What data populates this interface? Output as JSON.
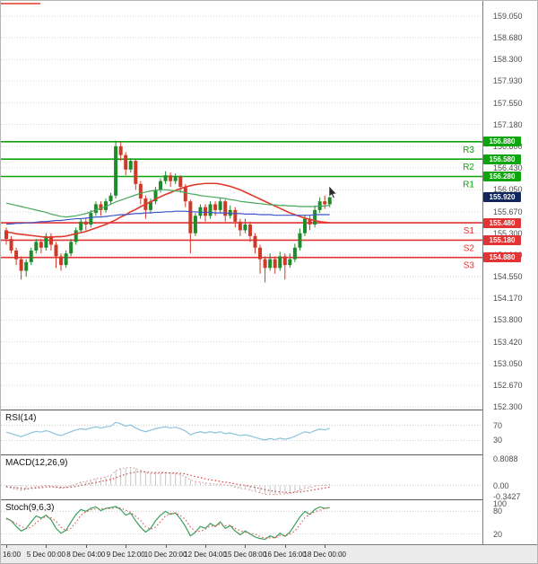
{
  "colors": {
    "background": "#ffffff",
    "grid": "#d6d6d6",
    "candle_up": "#1e8c28",
    "candle_down": "#cf3a28",
    "ma_red": "#e0392c",
    "ma_green": "#46a85c",
    "ma_blue": "#3c55c8",
    "resistance": "#0da50d",
    "support": "#e23434",
    "current_price_tag": "#10265c",
    "axis_text": "#444444",
    "timeline_bg": "#ececec"
  },
  "chart_data": {
    "type": "candlestick",
    "price_axis_ticks": [
      "159.050",
      "158.680",
      "158.300",
      "157.930",
      "157.550",
      "157.180",
      "156.800",
      "156.430",
      "156.050",
      "155.670",
      "155.300",
      "154.920",
      "154.550",
      "154.170",
      "153.800",
      "153.420",
      "153.050",
      "152.670",
      "152.300"
    ],
    "time_axis_ticks": [
      "16:00",
      "5 Dec 00:00",
      "8 Dec 04:00",
      "9 Dec 12:00",
      "10 Dec 20:00",
      "12 Dec 04:00",
      "15 Dec 08:00",
      "16 Dec 16:00",
      "18 Dec 00:00"
    ],
    "price_range": [
      152.253,
      159.314
    ],
    "levels": {
      "resistance": [
        {
          "label": "R3",
          "price": 156.88,
          "tag": "156.880"
        },
        {
          "label": "R2",
          "price": 156.58,
          "tag": "156.580"
        },
        {
          "label": "R1",
          "price": 156.28,
          "tag": "156.280"
        }
      ],
      "support": [
        {
          "label": "S1",
          "price": 155.48,
          "tag": "155.480"
        },
        {
          "label": "S2",
          "price": 155.18,
          "tag": "155.180"
        },
        {
          "label": "S3",
          "price": 154.88,
          "tag": "154.880"
        }
      ],
      "current": {
        "price": 155.92,
        "tag": "155.920"
      }
    },
    "candles": [
      [
        155.35,
        155.4,
        155.1,
        155.2
      ],
      [
        155.2,
        155.25,
        154.95,
        155.0
      ],
      [
        155.0,
        155.05,
        154.75,
        154.85
      ],
      [
        154.85,
        154.9,
        154.5,
        154.65
      ],
      [
        154.65,
        154.85,
        154.55,
        154.8
      ],
      [
        154.8,
        155.05,
        154.75,
        155.0
      ],
      [
        155.0,
        155.2,
        154.95,
        155.15
      ],
      [
        155.15,
        155.2,
        154.95,
        155.05
      ],
      [
        155.05,
        155.3,
        155.0,
        155.25
      ],
      [
        155.25,
        155.3,
        155.0,
        155.1
      ],
      [
        155.1,
        155.15,
        154.7,
        154.9
      ],
      [
        154.9,
        154.95,
        154.65,
        154.75
      ],
      [
        154.75,
        155.0,
        154.7,
        154.95
      ],
      [
        154.95,
        155.2,
        154.9,
        155.15
      ],
      [
        155.15,
        155.4,
        155.1,
        155.35
      ],
      [
        155.35,
        155.55,
        155.3,
        155.5
      ],
      [
        155.5,
        155.55,
        155.35,
        155.45
      ],
      [
        155.45,
        155.7,
        155.4,
        155.65
      ],
      [
        155.65,
        155.85,
        155.6,
        155.8
      ],
      [
        155.8,
        155.85,
        155.6,
        155.7
      ],
      [
        155.7,
        155.9,
        155.65,
        155.85
      ],
      [
        155.85,
        156.0,
        155.8,
        155.95
      ],
      [
        155.95,
        156.9,
        155.9,
        156.8
      ],
      [
        156.8,
        156.88,
        156.55,
        156.65
      ],
      [
        156.65,
        156.7,
        156.3,
        156.4
      ],
      [
        156.4,
        156.6,
        156.35,
        156.55
      ],
      [
        156.55,
        156.58,
        156.05,
        156.15
      ],
      [
        156.15,
        156.2,
        155.8,
        155.9
      ],
      [
        155.9,
        155.95,
        155.55,
        155.7
      ],
      [
        155.7,
        155.9,
        155.65,
        155.85
      ],
      [
        155.85,
        156.1,
        155.8,
        156.05
      ],
      [
        156.05,
        156.25,
        156.0,
        156.2
      ],
      [
        156.2,
        156.37,
        156.15,
        156.3
      ],
      [
        156.3,
        156.35,
        156.1,
        156.2
      ],
      [
        156.2,
        156.33,
        156.15,
        156.28
      ],
      [
        156.28,
        156.3,
        156.0,
        156.1
      ],
      [
        156.1,
        156.15,
        155.75,
        155.85
      ],
      [
        155.85,
        155.88,
        154.95,
        155.3
      ],
      [
        155.3,
        155.65,
        155.25,
        155.6
      ],
      [
        155.6,
        155.8,
        155.55,
        155.75
      ],
      [
        155.75,
        155.8,
        155.5,
        155.6
      ],
      [
        155.6,
        155.85,
        155.55,
        155.8
      ],
      [
        155.8,
        155.85,
        155.6,
        155.7
      ],
      [
        155.7,
        155.9,
        155.65,
        155.85
      ],
      [
        155.85,
        155.88,
        155.5,
        155.6
      ],
      [
        155.6,
        155.78,
        155.55,
        155.7
      ],
      [
        155.7,
        155.75,
        155.4,
        155.5
      ],
      [
        155.5,
        155.55,
        155.25,
        155.35
      ],
      [
        155.35,
        155.55,
        155.3,
        155.45
      ],
      [
        155.45,
        155.5,
        155.15,
        155.25
      ],
      [
        155.25,
        155.3,
        154.95,
        155.05
      ],
      [
        155.05,
        155.1,
        154.6,
        154.85
      ],
      [
        154.85,
        154.9,
        154.45,
        154.7
      ],
      [
        154.7,
        154.95,
        154.65,
        154.85
      ],
      [
        154.85,
        154.9,
        154.6,
        154.7
      ],
      [
        154.7,
        154.98,
        154.65,
        154.9
      ],
      [
        154.9,
        154.95,
        154.5,
        154.75
      ],
      [
        154.75,
        154.95,
        154.7,
        154.85
      ],
      [
        154.85,
        155.12,
        154.8,
        155.05
      ],
      [
        155.05,
        155.38,
        155.0,
        155.3
      ],
      [
        155.3,
        155.62,
        155.25,
        155.55
      ],
      [
        155.55,
        155.6,
        155.35,
        155.45
      ],
      [
        155.45,
        155.78,
        155.4,
        155.7
      ],
      [
        155.7,
        155.92,
        155.65,
        155.85
      ],
      [
        155.85,
        155.95,
        155.72,
        155.8
      ],
      [
        155.8,
        155.97,
        155.75,
        155.92
      ]
    ],
    "overlays": [
      {
        "name": "ma-red",
        "color": "#e0392c",
        "values": [
          155.32,
          155.31,
          155.29,
          155.28,
          155.27,
          155.26,
          155.25,
          155.24,
          155.23,
          155.23,
          155.24,
          155.24,
          155.25,
          155.27,
          155.29,
          155.31,
          155.33,
          155.36,
          155.39,
          155.42,
          155.45,
          155.49,
          155.53,
          155.58,
          155.62,
          155.67,
          155.71,
          155.76,
          155.8,
          155.84,
          155.89,
          155.93,
          155.97,
          156.0,
          156.04,
          156.07,
          156.1,
          156.12,
          156.14,
          156.15,
          156.16,
          156.16,
          156.16,
          156.15,
          156.13,
          156.11,
          156.08,
          156.05,
          156.01,
          155.97,
          155.93,
          155.89,
          155.85,
          155.81,
          155.77,
          155.73,
          155.69,
          155.65,
          155.62,
          155.59,
          155.56,
          155.54,
          155.52,
          155.5,
          155.49,
          155.48
        ]
      },
      {
        "name": "ma-green",
        "color": "#46a85c",
        "values": [
          155.82,
          155.8,
          155.78,
          155.76,
          155.74,
          155.72,
          155.7,
          155.68,
          155.66,
          155.63,
          155.61,
          155.59,
          155.58,
          155.59,
          155.6,
          155.62,
          155.64,
          155.67,
          155.7,
          155.73,
          155.76,
          155.8,
          155.84,
          155.87,
          155.9,
          155.93,
          155.96,
          155.99,
          156.01,
          156.03,
          156.04,
          156.05,
          156.05,
          156.04,
          156.03,
          156.02,
          156.0,
          155.98,
          155.97,
          155.95,
          155.94,
          155.93,
          155.92,
          155.91,
          155.9,
          155.88,
          155.87,
          155.85,
          155.84,
          155.83,
          155.82,
          155.81,
          155.8,
          155.79,
          155.79,
          155.78,
          155.78,
          155.77,
          155.77,
          155.76,
          155.76,
          155.76,
          155.76,
          155.77,
          155.77,
          155.78
        ]
      },
      {
        "name": "ma-blue",
        "color": "#3c55c8",
        "values": [
          155.46,
          155.46,
          155.47,
          155.47,
          155.48,
          155.48,
          155.49,
          155.5,
          155.5,
          155.51,
          155.52,
          155.52,
          155.53,
          155.54,
          155.55,
          155.55,
          155.56,
          155.57,
          155.58,
          155.58,
          155.59,
          155.6,
          155.61,
          155.62,
          155.62,
          155.63,
          155.64,
          155.64,
          155.65,
          155.65,
          155.66,
          155.66,
          155.67,
          155.67,
          155.68,
          155.68,
          155.68,
          155.67,
          155.67,
          155.66,
          155.66,
          155.66,
          155.65,
          155.65,
          155.65,
          155.64,
          155.64,
          155.64,
          155.63,
          155.63,
          155.63,
          155.62,
          155.62,
          155.62,
          155.61,
          155.61,
          155.61,
          155.61,
          155.61,
          155.61,
          155.61,
          155.61,
          155.62,
          155.62,
          155.62,
          155.62
        ]
      }
    ],
    "panes": {
      "rsi": {
        "label": "RSI(14)",
        "range": [
          0,
          100
        ],
        "ticks": [
          {
            "v": 70,
            "t": "70"
          },
          {
            "v": 30,
            "t": "30"
          }
        ],
        "series": [
          {
            "name": "rsi-line",
            "color": "#8cc3dc",
            "style": "solid",
            "values": [
              52,
              48,
              44,
              40,
              45,
              50,
              54,
              52,
              56,
              52,
              46,
              43,
              48,
              53,
              58,
              61,
              59,
              63,
              66,
              63,
              66,
              68,
              78,
              74,
              68,
              71,
              63,
              57,
              53,
              57,
              61,
              64,
              66,
              63,
              65,
              61,
              55,
              45,
              50,
              53,
              50,
              53,
              50,
              53,
              48,
              50,
              46,
              43,
              45,
              42,
              38,
              34,
              31,
              35,
              32,
              36,
              33,
              36,
              41,
              47,
              53,
              50,
              56,
              60,
              58,
              62
            ]
          }
        ]
      },
      "macd": {
        "label": "MACD(12,26,9)",
        "range": [
          -0.3427,
          0.8088
        ],
        "ticks": [
          {
            "v": 0.8088,
            "t": "0.8088"
          },
          {
            "v": 0,
            "t": "0.00"
          },
          {
            "v": -0.3427,
            "t": "-0.3427"
          }
        ],
        "zero_line": 0,
        "series": [
          {
            "name": "macd-line",
            "color": "#e39a9a",
            "style": "dashed",
            "values": [
              -0.05,
              -0.08,
              -0.12,
              -0.15,
              -0.12,
              -0.08,
              -0.04,
              -0.03,
              0.0,
              -0.02,
              -0.06,
              -0.09,
              -0.07,
              -0.02,
              0.04,
              0.1,
              0.12,
              0.16,
              0.21,
              0.22,
              0.26,
              0.3,
              0.45,
              0.52,
              0.53,
              0.55,
              0.52,
              0.46,
              0.39,
              0.36,
              0.36,
              0.37,
              0.38,
              0.37,
              0.36,
              0.33,
              0.27,
              0.17,
              0.12,
              0.1,
              0.07,
              0.06,
              0.04,
              0.04,
              0.01,
              -0.01,
              -0.05,
              -0.09,
              -0.11,
              -0.14,
              -0.18,
              -0.23,
              -0.27,
              -0.27,
              -0.28,
              -0.26,
              -0.26,
              -0.24,
              -0.2,
              -0.15,
              -0.09,
              -0.07,
              -0.03,
              0.0,
              0.01,
              0.03
            ]
          },
          {
            "name": "macd-signal",
            "color": "#d04545",
            "style": "dashed",
            "values": [
              -0.03,
              -0.05,
              -0.07,
              -0.09,
              -0.1,
              -0.09,
              -0.08,
              -0.07,
              -0.05,
              -0.04,
              -0.05,
              -0.06,
              -0.06,
              -0.05,
              -0.03,
              0.0,
              0.03,
              0.06,
              0.09,
              0.12,
              0.15,
              0.18,
              0.23,
              0.29,
              0.34,
              0.38,
              0.41,
              0.42,
              0.41,
              0.4,
              0.39,
              0.39,
              0.39,
              0.38,
              0.38,
              0.37,
              0.35,
              0.31,
              0.27,
              0.24,
              0.2,
              0.17,
              0.15,
              0.12,
              0.1,
              0.08,
              0.05,
              0.02,
              0.0,
              -0.03,
              -0.06,
              -0.09,
              -0.13,
              -0.16,
              -0.18,
              -0.2,
              -0.21,
              -0.22,
              -0.21,
              -0.2,
              -0.18,
              -0.16,
              -0.13,
              -0.1,
              -0.08,
              -0.05
            ]
          }
        ]
      },
      "stoch": {
        "label": "Stoch(9,6,3)",
        "range": [
          0,
          100
        ],
        "ticks": [
          {
            "v": 100,
            "t": "100"
          },
          {
            "v": 80,
            "t": "80"
          },
          {
            "v": 20,
            "t": "20"
          }
        ],
        "series": [
          {
            "name": "stoch-k",
            "color": "#3aa05a",
            "style": "solid",
            "values": [
              62,
              55,
              40,
              28,
              35,
              52,
              68,
              62,
              70,
              58,
              35,
              22,
              30,
              52,
              72,
              85,
              80,
              88,
              92,
              82,
              88,
              90,
              93,
              85,
              70,
              75,
              55,
              38,
              25,
              35,
              55,
              70,
              80,
              72,
              76,
              60,
              40,
              15,
              25,
              40,
              35,
              48,
              40,
              52,
              35,
              42,
              28,
              18,
              28,
              20,
              12,
              8,
              6,
              15,
              10,
              22,
              14,
              25,
              45,
              65,
              80,
              72,
              85,
              92,
              88,
              90
            ]
          },
          {
            "name": "stoch-d",
            "color": "#e05a5a",
            "style": "dashed",
            "values": [
              60,
              55,
              48,
              40,
              34,
              38,
              50,
              60,
              66,
              63,
              54,
              38,
              29,
              35,
              51,
              70,
              79,
              84,
              87,
              87,
              87,
              87,
              90,
              89,
              83,
              77,
              67,
              56,
              39,
              33,
              38,
              53,
              68,
              74,
              76,
              69,
              59,
              38,
              27,
              27,
              33,
              41,
              41,
              47,
              42,
              43,
              35,
              29,
              25,
              22,
              20,
              13,
              9,
              10,
              10,
              16,
              15,
              20,
              28,
              45,
              63,
              72,
              79,
              83,
              88,
              90
            ]
          }
        ]
      }
    }
  }
}
